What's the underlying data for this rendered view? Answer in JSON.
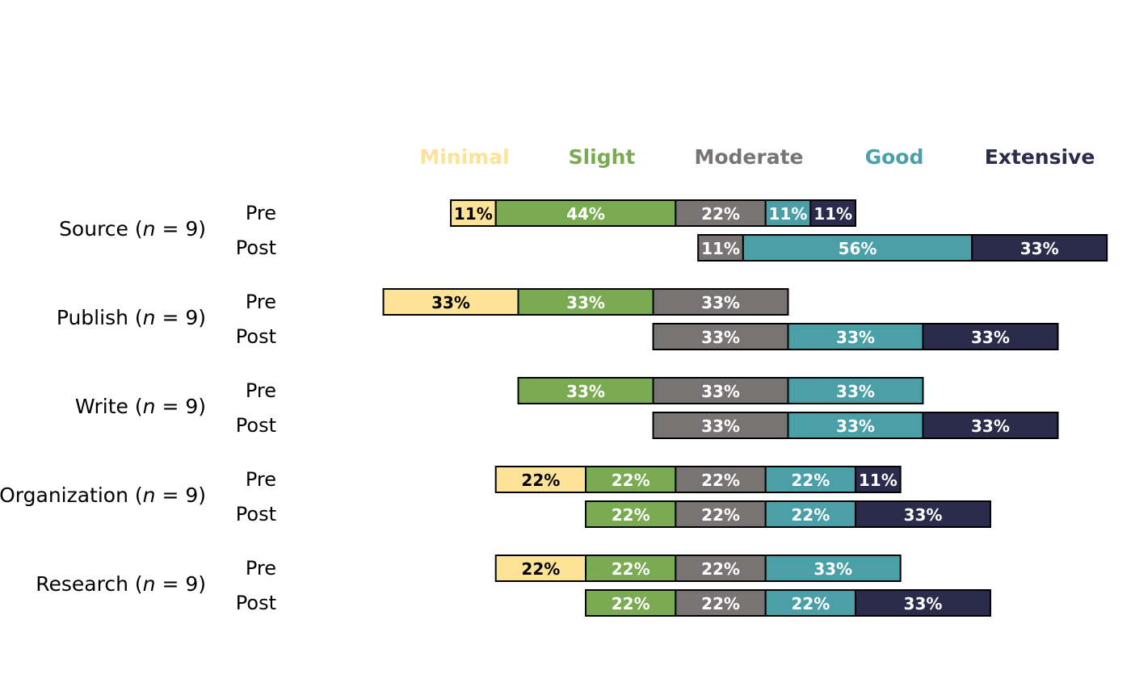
{
  "chart_data": {
    "type": "bar",
    "orientation": "horizontal",
    "stacking": "diverging",
    "levels": [
      "Minimal",
      "Slight",
      "Moderate",
      "Good",
      "Extensive"
    ],
    "colors": {
      "Minimal": "#fde398",
      "Slight": "#7aab53",
      "Moderate": "#787474",
      "Good": "#4ba0a8",
      "Extensive": "#2b2b4b"
    },
    "label_colors": {
      "Minimal": "#000000",
      "Slight": "#ffffff",
      "Moderate": "#ffffff",
      "Good": "#ffffff",
      "Extensive": "#ffffff"
    },
    "groups": [
      {
        "name": "Source",
        "n": "9",
        "rows": [
          {
            "label": "Pre",
            "values": [
              11,
              44,
              22,
              11,
              11
            ],
            "labels": [
              "11%",
              "44%",
              "22%",
              "11%",
              "11%"
            ]
          },
          {
            "label": "Post",
            "values": [
              0,
              0,
              11,
              56,
              33
            ],
            "labels": [
              "",
              "",
              "11%",
              "56%",
              "33%"
            ]
          }
        ]
      },
      {
        "name": "Publish",
        "n": "9",
        "rows": [
          {
            "label": "Pre",
            "values": [
              33,
              33,
              33,
              0,
              0
            ],
            "labels": [
              "33%",
              "33%",
              "33%",
              "",
              ""
            ]
          },
          {
            "label": "Post",
            "values": [
              0,
              0,
              33,
              33,
              33
            ],
            "labels": [
              "",
              "",
              "33%",
              "33%",
              "33%"
            ]
          }
        ]
      },
      {
        "name": "Write",
        "n": "9",
        "rows": [
          {
            "label": "Pre",
            "values": [
              0,
              33,
              33,
              33,
              0
            ],
            "labels": [
              "",
              "33%",
              "33%",
              "33%",
              ""
            ]
          },
          {
            "label": "Post",
            "values": [
              0,
              0,
              33,
              33,
              33
            ],
            "labels": [
              "",
              "",
              "33%",
              "33%",
              "33%"
            ]
          }
        ]
      },
      {
        "name": "Organization",
        "n": "9",
        "rows": [
          {
            "label": "Pre",
            "values": [
              22,
              22,
              22,
              22,
              11
            ],
            "labels": [
              "22%",
              "22%",
              "22%",
              "22%",
              "11%"
            ]
          },
          {
            "label": "Post",
            "values": [
              0,
              22,
              22,
              22,
              33
            ],
            "labels": [
              "",
              "22%",
              "22%",
              "22%",
              "33%"
            ]
          }
        ]
      },
      {
        "name": "Research",
        "n": "9",
        "rows": [
          {
            "label": "Pre",
            "values": [
              22,
              22,
              22,
              33,
              0
            ],
            "labels": [
              "22%",
              "22%",
              "22%",
              "33%",
              ""
            ]
          },
          {
            "label": "Post",
            "values": [
              0,
              22,
              22,
              22,
              33
            ],
            "labels": [
              "",
              "22%",
              "22%",
              "22%",
              "33%"
            ]
          }
        ]
      }
    ]
  }
}
